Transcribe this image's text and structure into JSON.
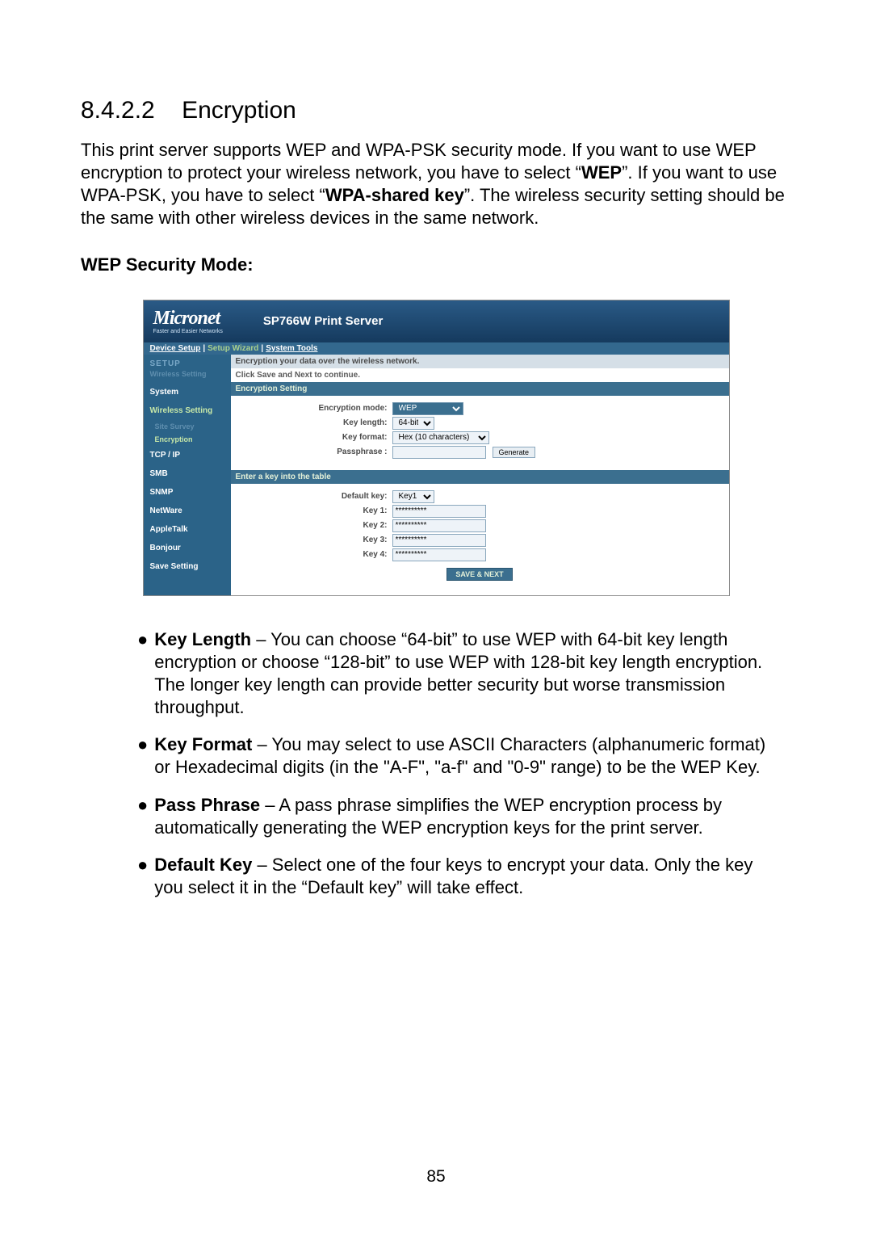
{
  "section": {
    "number": "8.4.2.2",
    "title": "Encryption"
  },
  "intro_parts": {
    "p1": "This print server supports WEP and WPA-PSK security mode. If you want to use WEP encryption to protect your wireless network, you have to select “",
    "b1": "WEP",
    "p2": "”. If you want to use WPA-PSK, you have to select “",
    "b2": "WPA-shared key",
    "p3": "”. The wireless security setting should be the same with other wireless devices in the same network."
  },
  "subhead": "WEP Security Mode:",
  "screenshot": {
    "logo": "Micronet",
    "logo_tag": "Faster and Easier Networks",
    "product": "SP766W Print Server",
    "tabs": {
      "device_setup": "Device Setup",
      "setup_wizard": "Setup Wizard",
      "system_tools": "System Tools"
    },
    "sidebar": {
      "group1": "SETUP",
      "group1b": "Wireless Setting",
      "items": [
        "System",
        "Wireless Setting",
        "Site Survey",
        "Encryption",
        "TCP / IP",
        "SMB",
        "SNMP",
        "NetWare",
        "AppleTalk",
        "Bonjour",
        "Save Setting"
      ]
    },
    "main": {
      "line1": "Encryption your data over the wireless network.",
      "line2": "Click Save and Next to continue.",
      "bar_enc_setting": "Encryption Setting",
      "labels": {
        "enc_mode": "Encryption mode:",
        "key_len": "Key length:",
        "key_fmt": "Key format:",
        "passphrase": "Passphrase :",
        "def_key": "Default key:",
        "key1": "Key 1:",
        "key2": "Key 2:",
        "key3": "Key 3:",
        "key4": "Key 4:"
      },
      "values": {
        "enc_mode": "WEP",
        "key_len": "64-bit",
        "key_fmt": "Hex (10 characters)",
        "passphrase": "",
        "def_key": "Key1",
        "key1": "**********",
        "key2": "**********",
        "key3": "**********",
        "key4": "**********"
      },
      "bar_enter_key": "Enter a key into the table",
      "btn_generate": "Generate",
      "btn_save": "SAVE & NEXT"
    }
  },
  "bullets": [
    {
      "term": "Key Length",
      "rest": " – You can choose “64-bit” to use WEP with 64-bit key length encryption or choose “128-bit” to use WEP with 128-bit key length encryption. The longer key length can provide better security but worse transmission throughput."
    },
    {
      "term": "Key Format",
      "rest": " – You may select to use ASCII Characters (alphanumeric format) or Hexadecimal digits (in the \"A-F\", \"a-f\" and \"0-9\" range) to be the WEP Key."
    },
    {
      "term": "Pass Phrase",
      "rest": " – A pass phrase simplifies the WEP encryption process by automatically generating the WEP encryption keys for the print server."
    },
    {
      "term": "Default Key",
      "rest": " – Select one of the four keys to encrypt your data. Only the key you select it in the “Default key” will take effect."
    }
  ],
  "page_number": "85"
}
